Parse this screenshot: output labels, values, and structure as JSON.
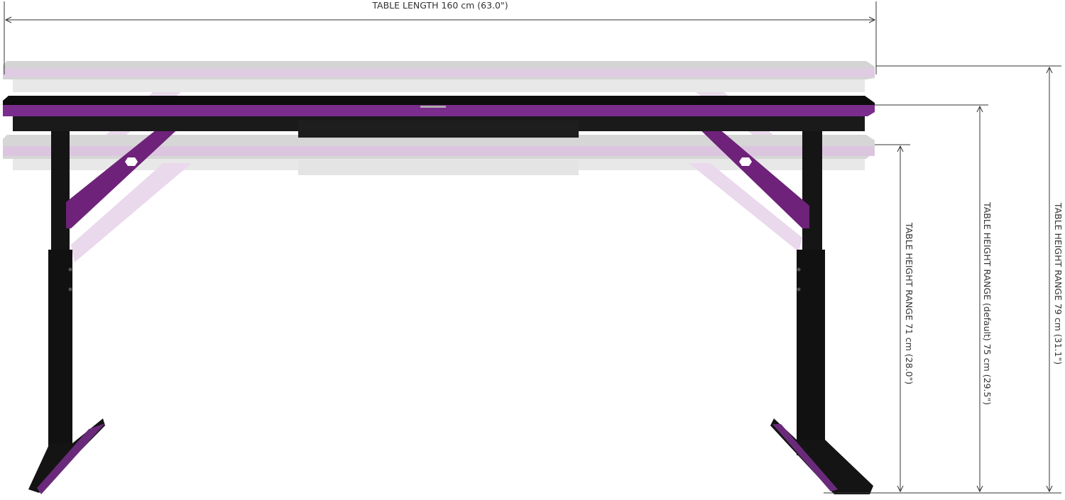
{
  "dimensions": {
    "length_label": "TABLE LENGTH 160 cm (63.0\")",
    "height_min_label": "TABLE HEIGHT RANGE 71 cm (28.0\")",
    "height_default_label": "TABLE HEIGHT RANGE (default) 75 cm (29.5\")",
    "height_max_label": "TABLE HEIGHT RANGE 79 cm (31.1\")"
  },
  "colors": {
    "accent_purple": "#7b2d8e",
    "desk_black": "#111111",
    "ghost_purple": "#dcc6df",
    "line": "#333333"
  }
}
